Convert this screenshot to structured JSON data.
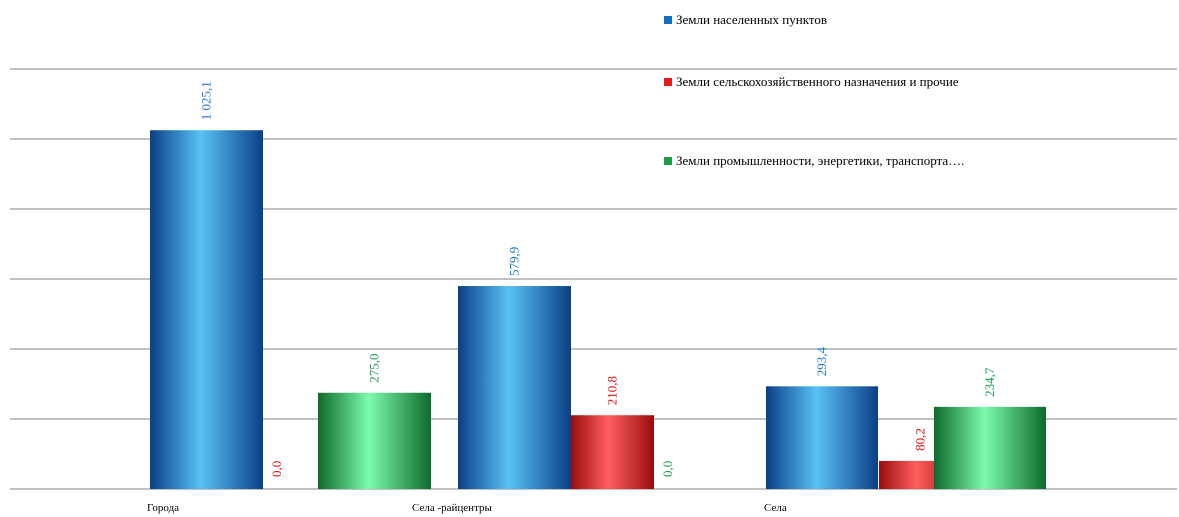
{
  "chart_data": {
    "type": "bar",
    "categories": [
      "Города",
      "Села -райцентры",
      "Села"
    ],
    "series": [
      {
        "name": "Земли населенных пунктов",
        "values": [
          1025.1,
          579.9,
          293.4
        ],
        "labels": [
          "1 025,1",
          "579,9",
          "293,4"
        ],
        "color": "#1070c0"
      },
      {
        "name": "Земли сельскохозяйственного назначения и прочие",
        "values": [
          0.0,
          210.8,
          80.2
        ],
        "labels": [
          "0,0",
          "210,8",
          "80,2"
        ],
        "color": "#e31b1b"
      },
      {
        "name": "Земли промышленности, энергетики, транспорта….",
        "values": [
          275.0,
          0.0,
          234.7
        ],
        "labels": [
          "275,0",
          "0,0",
          "234,7"
        ],
        "color": "#1a9e4a"
      }
    ],
    "ylim": [
      0,
      1200
    ],
    "grid": true,
    "legend": "top-right"
  }
}
